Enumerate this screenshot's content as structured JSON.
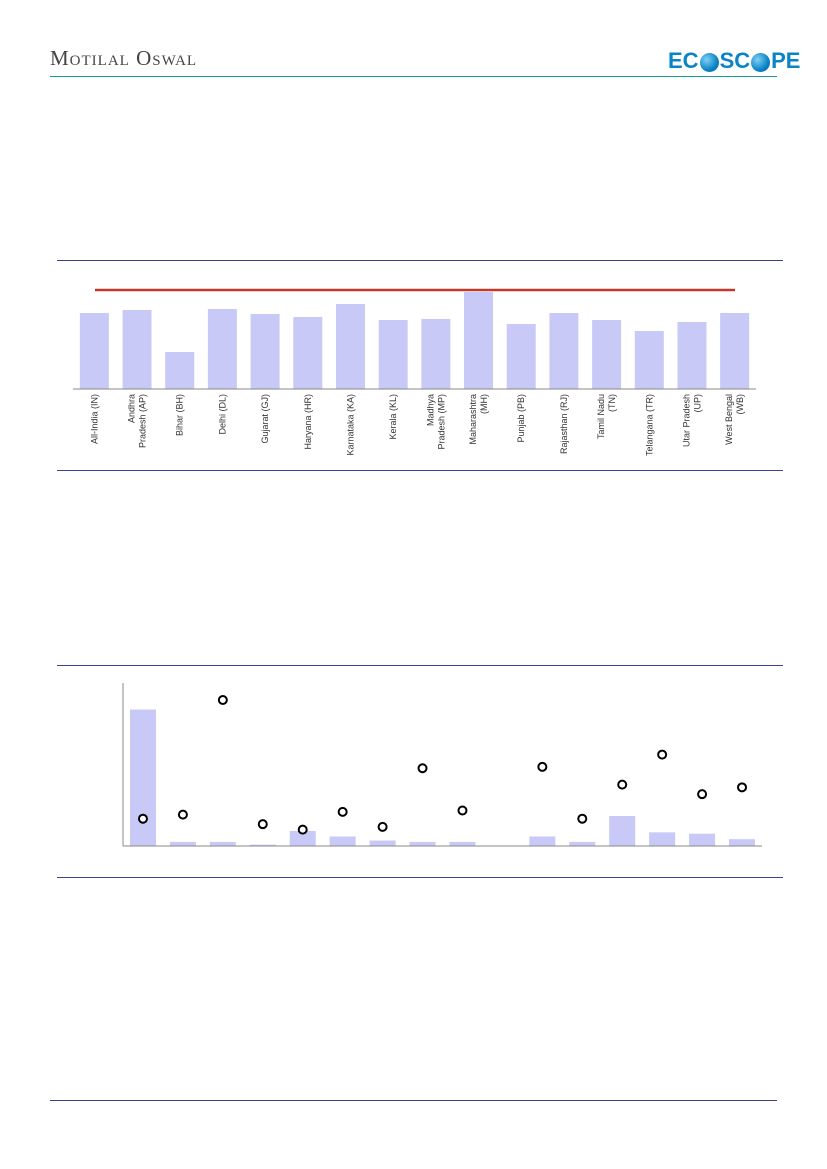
{
  "header": {
    "brand": "Motilal Oswal",
    "logo": {
      "left": "EC",
      "right": "SC",
      "end": "PE"
    }
  },
  "chart_data": [
    {
      "type": "bar",
      "categories": [
        "All-India (IN)",
        "Andhra Pradesh (AP)",
        "Bihar (BH)",
        "Delhi (DL)",
        "Gujarat (GJ)",
        "Haryana (HR)",
        "Karnataka (KA)",
        "Kerala (KL)",
        "Madhya Pradesh (MP)",
        "Maharashtra (MH)",
        "Punjab (PB)",
        "Rajasthan (RJ)",
        "Tamil Nadu (TN)",
        "Telangana (TR)",
        "Utar Pradesh (UP)",
        "West Bengal (WB)"
      ],
      "tick_lines": [
        [
          "All-India (IN)"
        ],
        [
          "Andhra",
          "Pradesh (AP)"
        ],
        [
          "Bihar (BH)"
        ],
        [
          "Delhi (DL)"
        ],
        [
          "Gujarat (GJ)"
        ],
        [
          "Haryana (HR)"
        ],
        [
          "Karnataka (KA)"
        ],
        [
          "Kerala (KL)"
        ],
        [
          "Madhya",
          "Pradesh (MP)"
        ],
        [
          "Maharashtra",
          "(MH)"
        ],
        [
          "Punjab (PB)"
        ],
        [
          "Rajasthan (RJ)"
        ],
        [
          "Tamil Nadu",
          "(TN)"
        ],
        [
          "Telangana (TR)"
        ],
        [
          "Utar Pradesh",
          "(UP)"
        ],
        [
          "West Bengal",
          "(WB)"
        ]
      ],
      "values": [
        76,
        79,
        37,
        80,
        75,
        72,
        85,
        69,
        70,
        97,
        65,
        76,
        69,
        58,
        67,
        76
      ],
      "reference_line": 99,
      "ylim": [
        0,
        100
      ],
      "colors": {
        "bar": "#c9c9f7",
        "line": "#c0392b"
      }
    },
    {
      "type": "bar",
      "bars": [
        100,
        3,
        3,
        1,
        11,
        7,
        4,
        3,
        3,
        0,
        7,
        3,
        22,
        10,
        9,
        5
      ],
      "markers": [
        20,
        23,
        107,
        16,
        12,
        25,
        14,
        57,
        26,
        0,
        58,
        20,
        45,
        67,
        38,
        43
      ],
      "ylim": [
        0,
        118
      ],
      "colors": {
        "bar": "#c9c9f7",
        "marker": "#000000"
      }
    }
  ]
}
